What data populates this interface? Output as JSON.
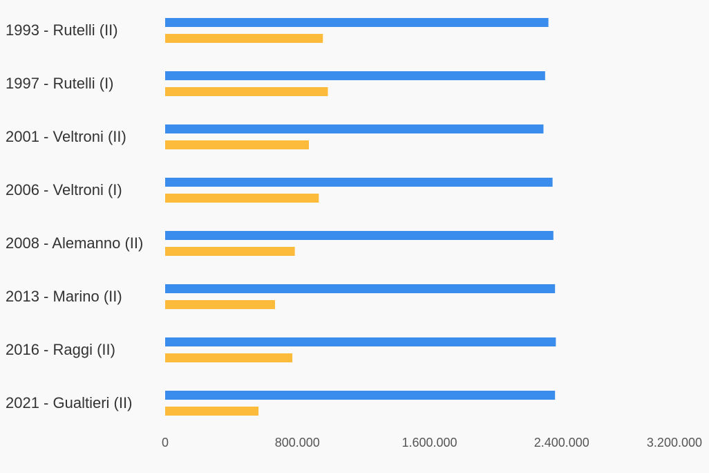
{
  "chart_data": {
    "type": "bar",
    "orientation": "horizontal",
    "categories": [
      "1993 - Rutelli (II)",
      "1997 - Rutelli (I)",
      "2001 - Veltroni (II)",
      "2006 - Veltroni (I)",
      "2008 - Alemanno (II)",
      "2013 - Marino (II)",
      "2016 - Raggi (II)",
      "2021 - Gualtieri (II)"
    ],
    "series": [
      {
        "color": "#3b8ded",
        "values": [
          2320000,
          2300000,
          2290000,
          2345000,
          2350000,
          2360000,
          2365000,
          2360000
        ]
      },
      {
        "color": "#fdbb3b",
        "values": [
          955000,
          985000,
          870000,
          930000,
          785000,
          665000,
          770000,
          565000
        ]
      }
    ],
    "xlim": [
      0,
      3200000
    ],
    "xticks": [
      0,
      800000,
      1600000,
      2400000,
      3200000
    ],
    "xtick_labels": [
      "0",
      "800.000",
      "1.600.000",
      "2.400.000",
      "3.200.000"
    ],
    "grid": false,
    "title": "",
    "xlabel": "",
    "ylabel": ""
  }
}
